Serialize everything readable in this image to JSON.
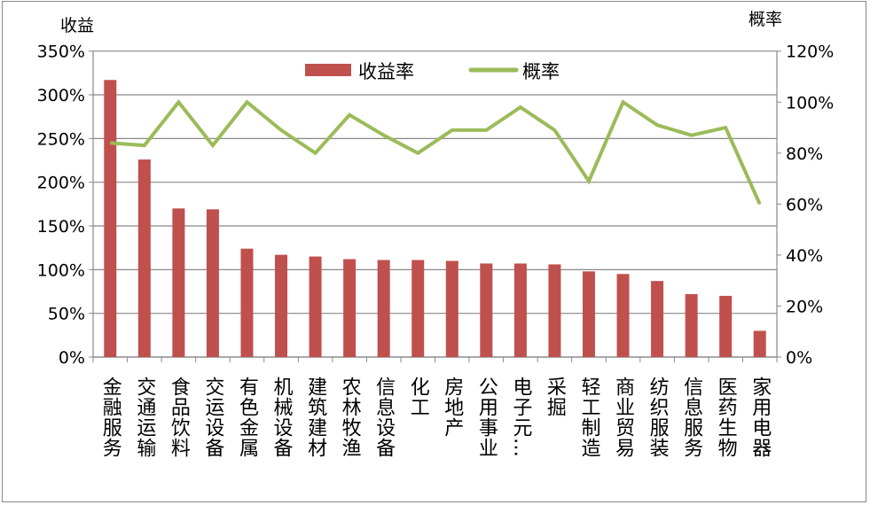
{
  "chart_data": {
    "type": "bar+line",
    "y_left_label": "收益",
    "y_right_label": "概率",
    "y_left_range": [
      0,
      350
    ],
    "y_left_ticks": [
      "0%",
      "50%",
      "100%",
      "150%",
      "200%",
      "250%",
      "300%",
      "350%"
    ],
    "y_right_range": [
      0,
      120
    ],
    "y_right_ticks": [
      "0%",
      "20%",
      "40%",
      "60%",
      "80%",
      "100%",
      "120%"
    ],
    "grid": true,
    "legend_position": "top",
    "categories": [
      "金融服务",
      "交通运输",
      "食品饮料",
      "交运设备",
      "有色金属",
      "机械设备",
      "建筑建材",
      "农林牧渔",
      "信息设备",
      "化工",
      "房地产",
      "公用事业",
      "电子元…",
      "采掘",
      "轻工制造",
      "商业贸易",
      "纺织服装",
      "信息服务",
      "医药生物",
      "家用电器"
    ],
    "series": [
      {
        "name": "收益率",
        "type": "bar",
        "axis": "left",
        "color": "#C0504D",
        "values": [
          317,
          226,
          170,
          169,
          124,
          117,
          115,
          112,
          111,
          111,
          110,
          107,
          107,
          106,
          98,
          95,
          87,
          72,
          70,
          30
        ]
      },
      {
        "name": "概率",
        "type": "line",
        "axis": "right",
        "color": "#9BBB59",
        "values": [
          84,
          83,
          100,
          83,
          100,
          89,
          80,
          95,
          87,
          80,
          89,
          89,
          98,
          89,
          69,
          100,
          91,
          87,
          90,
          60
        ]
      }
    ]
  }
}
